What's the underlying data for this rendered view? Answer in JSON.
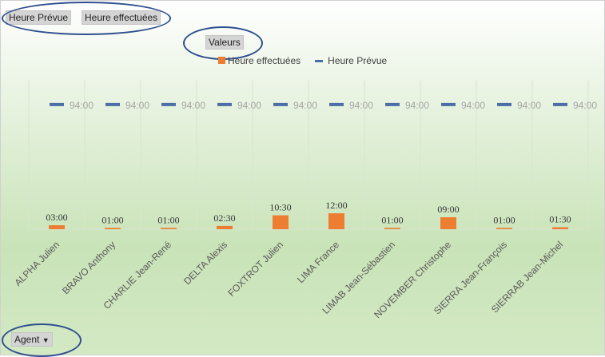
{
  "field_buttons": {
    "heure_prevue": "Heure Prévue",
    "heure_effectuees": "Heure effectuées",
    "valeurs": "Valeurs",
    "agent": "Agent"
  },
  "colors": {
    "bar": "#ed7d31",
    "line": "#4a6fa5"
  },
  "chart_data": {
    "type": "bar",
    "categories": [
      "ALPHA Julien",
      "BRAVO Anthony",
      "CHARLIE Jean-René",
      "DELTA Alexis",
      "FOXTROT Julien",
      "LIMA France",
      "LIMAB Jean-Sébastien",
      "NOVEMBER Christophe",
      "SIERRA Jean-François",
      "SIERRAB Jean-Michel"
    ],
    "series": [
      {
        "name": "Heure effectuées",
        "kind": "bar",
        "values": [
          3,
          1,
          1,
          2.5,
          10.5,
          12,
          1,
          9,
          1,
          1.5
        ],
        "labels": [
          "03:00",
          "01:00",
          "01:00",
          "02:30",
          "10:30",
          "12:00",
          "01:00",
          "09:00",
          "01:00",
          "01:30"
        ]
      },
      {
        "name": "Heure Prévue",
        "kind": "marker",
        "values": [
          94,
          94,
          94,
          94,
          94,
          94,
          94,
          94,
          94,
          94
        ],
        "labels": [
          "94:00",
          "94:00",
          "94:00",
          "94:00",
          "94:00",
          "94:00",
          "94:00",
          "94:00",
          "94:00",
          "94:00"
        ]
      }
    ],
    "ylim": [
      0,
      112
    ],
    "legend": "top",
    "grid": "vertical"
  }
}
